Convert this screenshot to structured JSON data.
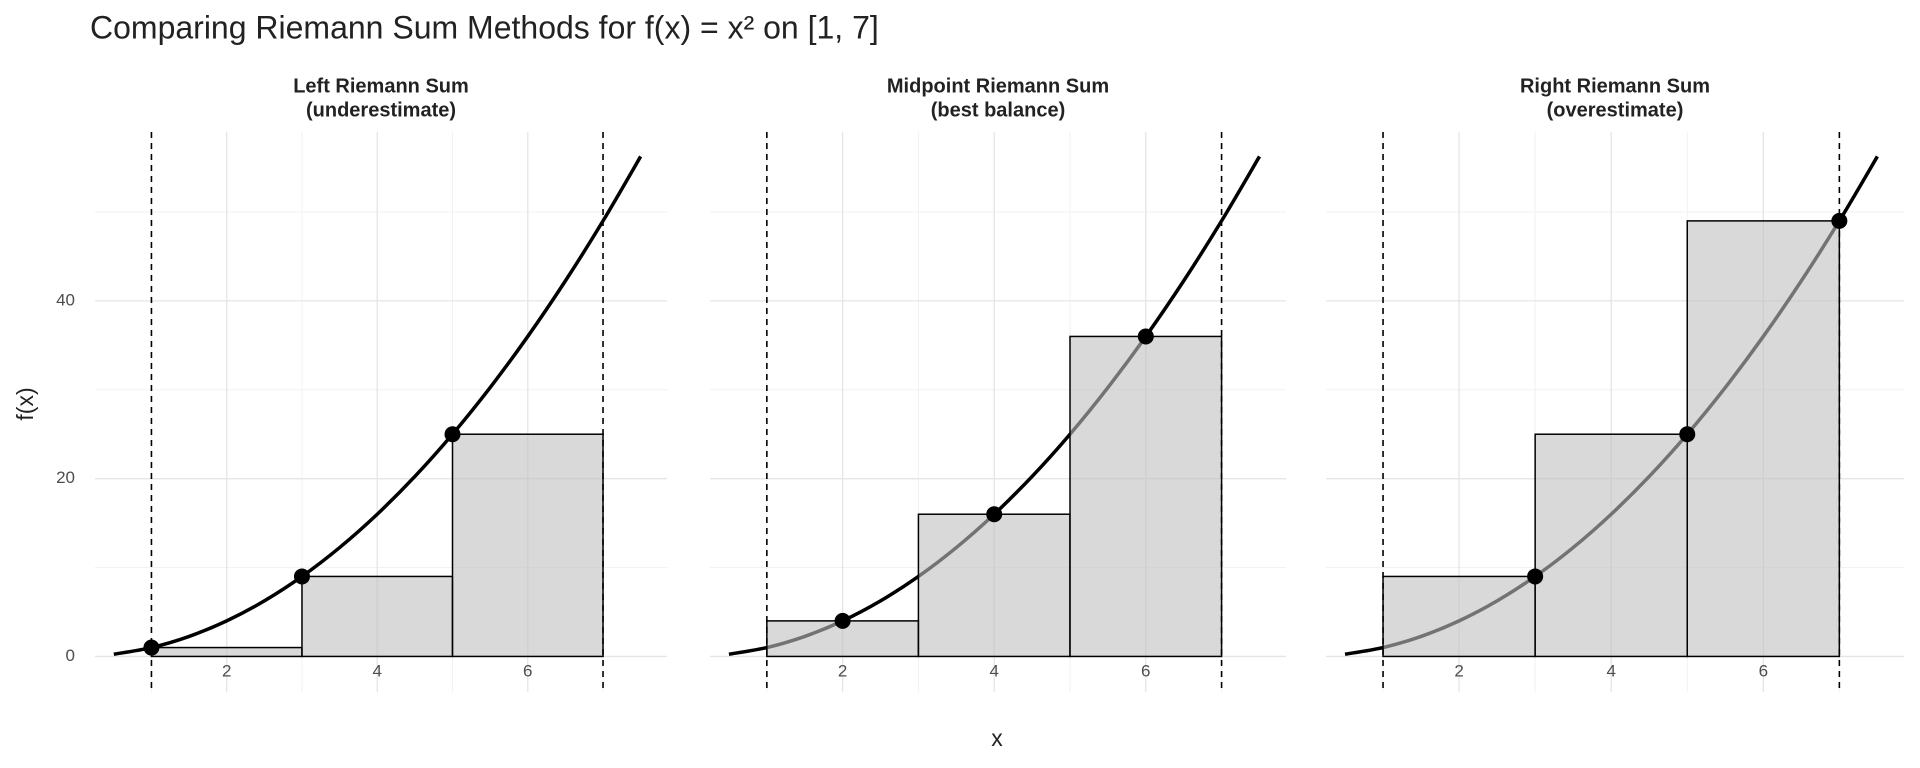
{
  "title": "Comparing Riemann Sum Methods for f(x) = x² on [1, 7]",
  "xlabel": "x",
  "ylabel": "f(x)",
  "chart_data": [
    {
      "type": "histogram",
      "title": "Left Riemann Sum",
      "subtitle": "(underestimate)",
      "bins": [
        1,
        3,
        5,
        7
      ],
      "values": [
        1,
        9,
        25
      ],
      "bounds": [
        1,
        7
      ],
      "points": {
        "x": [
          1,
          3,
          5
        ],
        "values": [
          1,
          9,
          25
        ]
      },
      "curve": {
        "x": [
          0.5,
          1,
          1.5,
          2,
          2.5,
          3,
          3.5,
          4,
          4.5,
          5,
          5.5,
          6,
          6.5,
          7,
          7.5
        ],
        "values": [
          0.25,
          1,
          2.25,
          4,
          6.25,
          9,
          12.25,
          16,
          20.25,
          25,
          30.25,
          36,
          42.25,
          49,
          56.25
        ]
      },
      "xlim": [
        0.25,
        7.85
      ],
      "ylim": [
        -4,
        59
      ],
      "xticks": [
        2,
        4,
        6
      ],
      "yticks": [
        0,
        20,
        40
      ],
      "minor_xticks": [
        1,
        3,
        5,
        7
      ],
      "minor_yticks": [
        10,
        30,
        50
      ],
      "grid": true,
      "color": "#bfbfbf"
    },
    {
      "type": "histogram",
      "title": "Midpoint Riemann Sum",
      "subtitle": "(best balance)",
      "bins": [
        1,
        3,
        5,
        7
      ],
      "values": [
        4,
        16,
        36
      ],
      "bounds": [
        1,
        7
      ],
      "points": {
        "x": [
          2,
          4,
          6
        ],
        "values": [
          4,
          16,
          36
        ]
      },
      "curve": {
        "x": [
          0.5,
          1,
          1.5,
          2,
          2.5,
          3,
          3.5,
          4,
          4.5,
          5,
          5.5,
          6,
          6.5,
          7,
          7.5
        ],
        "values": [
          0.25,
          1,
          2.25,
          4,
          6.25,
          9,
          12.25,
          16,
          20.25,
          25,
          30.25,
          36,
          42.25,
          49,
          56.25
        ]
      },
      "xlim": [
        0.25,
        7.85
      ],
      "ylim": [
        -4,
        59
      ],
      "xticks": [
        2,
        4,
        6
      ],
      "yticks": [
        0,
        20,
        40
      ],
      "minor_xticks": [
        1,
        3,
        5,
        7
      ],
      "minor_yticks": [
        10,
        30,
        50
      ],
      "grid": true,
      "color": "#bfbfbf"
    },
    {
      "type": "histogram",
      "title": "Right Riemann Sum",
      "subtitle": "(overestimate)",
      "bins": [
        1,
        3,
        5,
        7
      ],
      "values": [
        9,
        25,
        49
      ],
      "bounds": [
        1,
        7
      ],
      "points": {
        "x": [
          3,
          5,
          7
        ],
        "values": [
          9,
          25,
          49
        ]
      },
      "curve": {
        "x": [
          0.5,
          1,
          1.5,
          2,
          2.5,
          3,
          3.5,
          4,
          4.5,
          5,
          5.5,
          6,
          6.5,
          7,
          7.5
        ],
        "values": [
          0.25,
          1,
          2.25,
          4,
          6.25,
          9,
          12.25,
          16,
          20.25,
          25,
          30.25,
          36,
          42.25,
          49,
          56.25
        ]
      },
      "xlim": [
        0.25,
        7.85
      ],
      "ylim": [
        -4,
        59
      ],
      "xticks": [
        2,
        4,
        6
      ],
      "yticks": [
        0,
        20,
        40
      ],
      "minor_xticks": [
        1,
        3,
        5,
        7
      ],
      "minor_yticks": [
        10,
        30,
        50
      ],
      "grid": true,
      "color": "#bfbfbf"
    }
  ]
}
